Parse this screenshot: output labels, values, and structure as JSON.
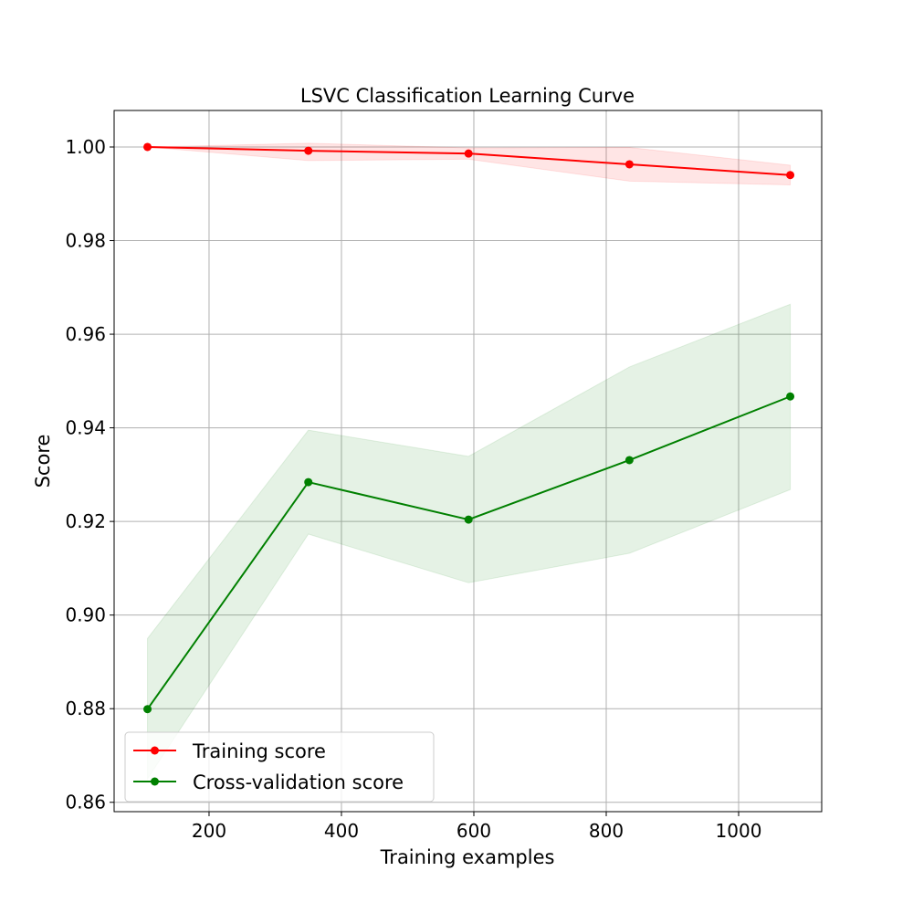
{
  "chart_data": {
    "type": "line",
    "title": "LSVC Classification Learning Curve",
    "xlabel": "Training examples",
    "ylabel": "Score",
    "xlim": [
      56.6,
      1125.5
    ],
    "ylim": [
      0.858,
      1.0078
    ],
    "xticks": [
      200,
      400,
      600,
      800,
      1000
    ],
    "xtick_labels": [
      "200",
      "400",
      "600",
      "800",
      "1000"
    ],
    "yticks": [
      0.86,
      0.88,
      0.9,
      0.92,
      0.94,
      0.96,
      0.98,
      1.0
    ],
    "ytick_labels": [
      "0.86",
      "0.88",
      "0.90",
      "0.92",
      "0.94",
      "0.96",
      "0.98",
      "1.00"
    ],
    "grid": true,
    "legend_position": "lower-left",
    "x": [
      107,
      350,
      592,
      835,
      1078
    ],
    "series": [
      {
        "name": "Training score",
        "color": "#ff0000",
        "fill_color": "#ff0000",
        "values": [
          1.0,
          0.9992,
          0.9986,
          0.9963,
          0.994
        ],
        "band_lower": [
          1.0,
          0.9971,
          0.9974,
          0.9927,
          0.9919
        ],
        "band_upper": [
          1.0,
          1.0008,
          0.9998,
          0.9999,
          0.9961
        ]
      },
      {
        "name": "Cross-validation score",
        "color": "#008000",
        "fill_color": "#008000",
        "values": [
          0.8799,
          0.9284,
          0.9204,
          0.9331,
          0.9467
        ],
        "band_lower": [
          0.865,
          0.9173,
          0.9069,
          0.9132,
          0.9268
        ],
        "band_upper": [
          0.895,
          0.9395,
          0.9339,
          0.953,
          0.9664
        ]
      }
    ]
  }
}
